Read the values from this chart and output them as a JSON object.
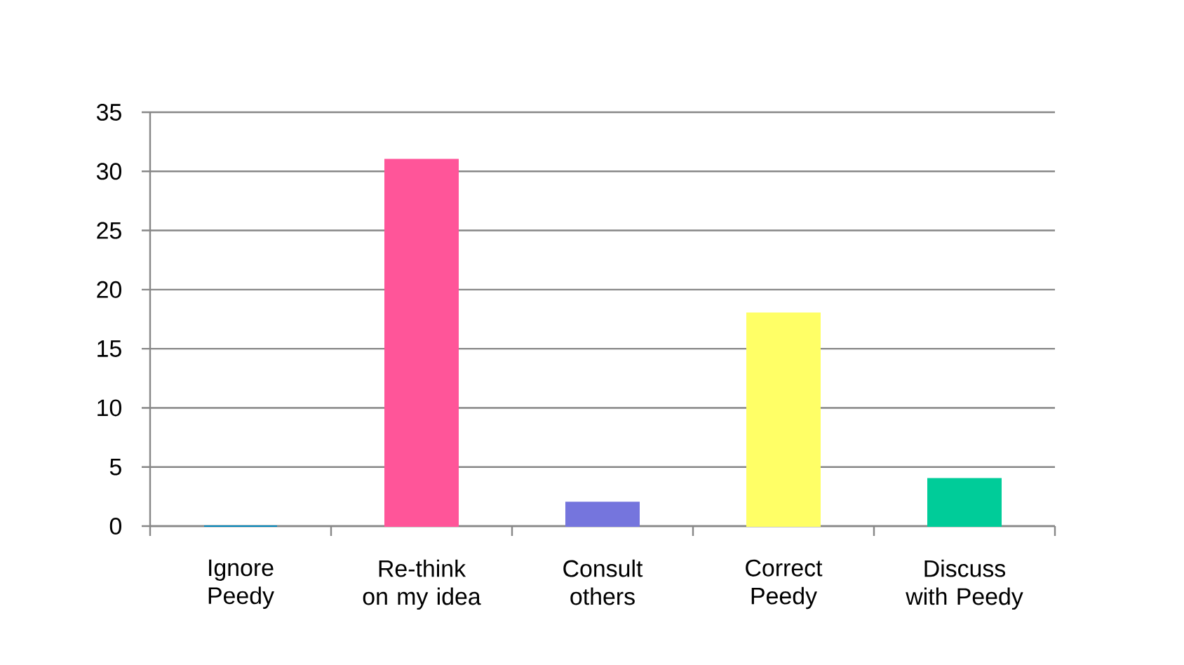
{
  "chart_data": {
    "type": "bar",
    "categories": [
      "Ignore Peedy",
      "Re-think on my idea",
      "Consult others",
      "Correct Peedy",
      "Discuss with Peedy"
    ],
    "values": [
      0,
      31,
      2,
      18,
      4
    ],
    "colors": [
      "#0085b9",
      "#ff5599",
      "#7575dd",
      "#ffff66",
      "#00cc99"
    ],
    "ylim": [
      0,
      35
    ],
    "yticks": [
      0,
      5,
      10,
      15,
      20,
      25,
      30,
      35
    ],
    "grid": "y"
  }
}
